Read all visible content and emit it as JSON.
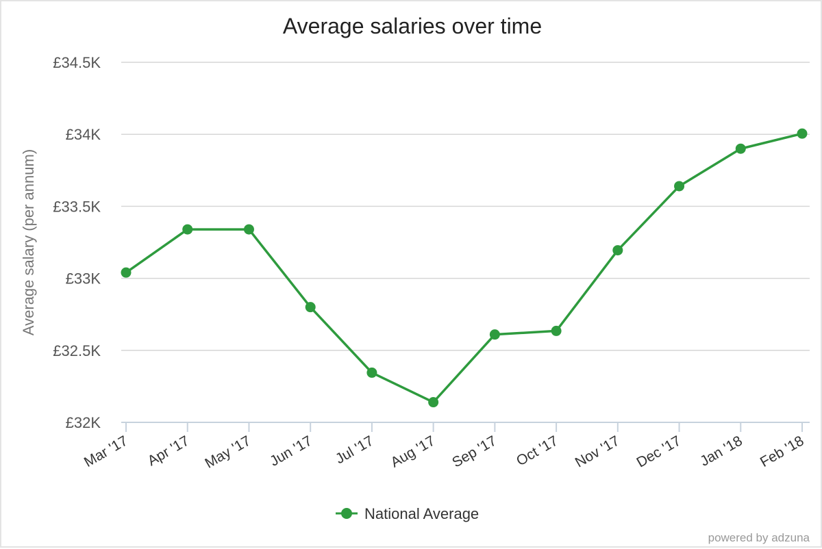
{
  "chart_data": {
    "type": "line",
    "title": "Average salaries over time",
    "xlabel": "",
    "ylabel": "Average salary (per annum)",
    "categories": [
      "Mar '17",
      "Apr '17",
      "May '17",
      "Jun '17",
      "Jul '17",
      "Aug '17",
      "Sep '17",
      "Oct '17",
      "Nov '17",
      "Dec '17",
      "Jan '18",
      "Feb '18"
    ],
    "series": [
      {
        "name": "National Average",
        "color": "#2e9b3e",
        "values": [
          33040,
          33340,
          33340,
          32800,
          32345,
          32140,
          32610,
          32635,
          33195,
          33640,
          33900,
          34005
        ]
      }
    ],
    "ylim": [
      32000,
      34500
    ],
    "yticks": [
      32000,
      32500,
      33000,
      33500,
      34000,
      34500
    ],
    "ytick_labels": [
      "£32K",
      "£32.5K",
      "£33K",
      "£33.5K",
      "£34K",
      "£34.5K"
    ],
    "grid": true,
    "legend": "bottom-center"
  },
  "footer": {
    "credit": "powered by adzuna"
  }
}
